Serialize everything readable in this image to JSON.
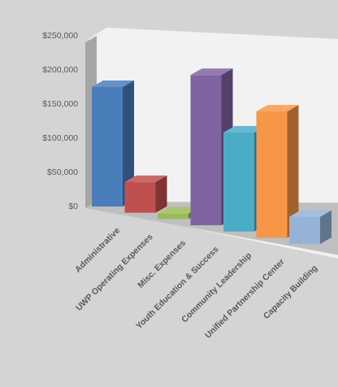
{
  "chart_data": {
    "type": "bar",
    "title": "",
    "xlabel": "",
    "ylabel": "",
    "ylim": [
      0,
      250000
    ],
    "y_ticks": [
      0,
      50000,
      100000,
      150000,
      200000,
      250000
    ],
    "y_tick_labels": [
      "$0",
      "$50,000",
      "$100,000",
      "$150,000",
      "$200,000",
      "$250,000"
    ],
    "categories": [
      "Administrative",
      "UWP Operating Expenses",
      "Misc. Expenses",
      "Youth Education & Success",
      "Community Leadership",
      "Unified Partnership Center",
      "Capacity Building"
    ],
    "values": [
      175000,
      45000,
      8000,
      220000,
      145000,
      185000,
      40000
    ],
    "colors": [
      "#4a7ebb",
      "#c0504d",
      "#9bbb59",
      "#8064a2",
      "#4bacc6",
      "#f79646",
      "#95b3d7"
    ],
    "style": "3d-clustered-column",
    "grid": false,
    "legend": "none"
  }
}
